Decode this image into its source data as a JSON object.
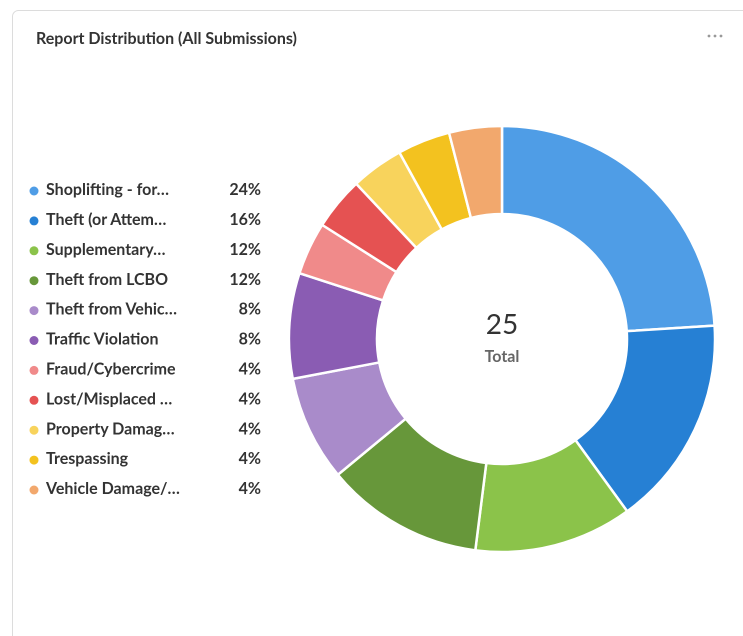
{
  "chart_data": {
    "type": "donut",
    "title": "Report Distribution (All Submissions)",
    "categories": [
      "Shoplifting - for…",
      "Theft (or Attem…",
      "Supplementary…",
      "Theft from LCBO",
      "Theft from Vehic…",
      "Traffic Violation",
      "Fraud/Cybercrime",
      "Lost/Misplaced …",
      "Property Damag…",
      "Trespassing",
      "Vehicle Damage/…"
    ],
    "values": [
      24,
      16,
      12,
      12,
      8,
      8,
      4,
      4,
      4,
      4,
      4
    ],
    "value_labels": [
      "24%",
      "16%",
      "12%",
      "12%",
      "8%",
      "8%",
      "4%",
      "4%",
      "4%",
      "4%",
      "4%"
    ],
    "colors": [
      "#4f9de6",
      "#2680d4",
      "#8bc34a",
      "#67973a",
      "#a98bca",
      "#8a5cb3",
      "#f08a8a",
      "#e55252",
      "#f8d35c",
      "#f3c21f",
      "#f2a86d"
    ],
    "total": 25,
    "total_label": "Total",
    "legend": "left"
  }
}
